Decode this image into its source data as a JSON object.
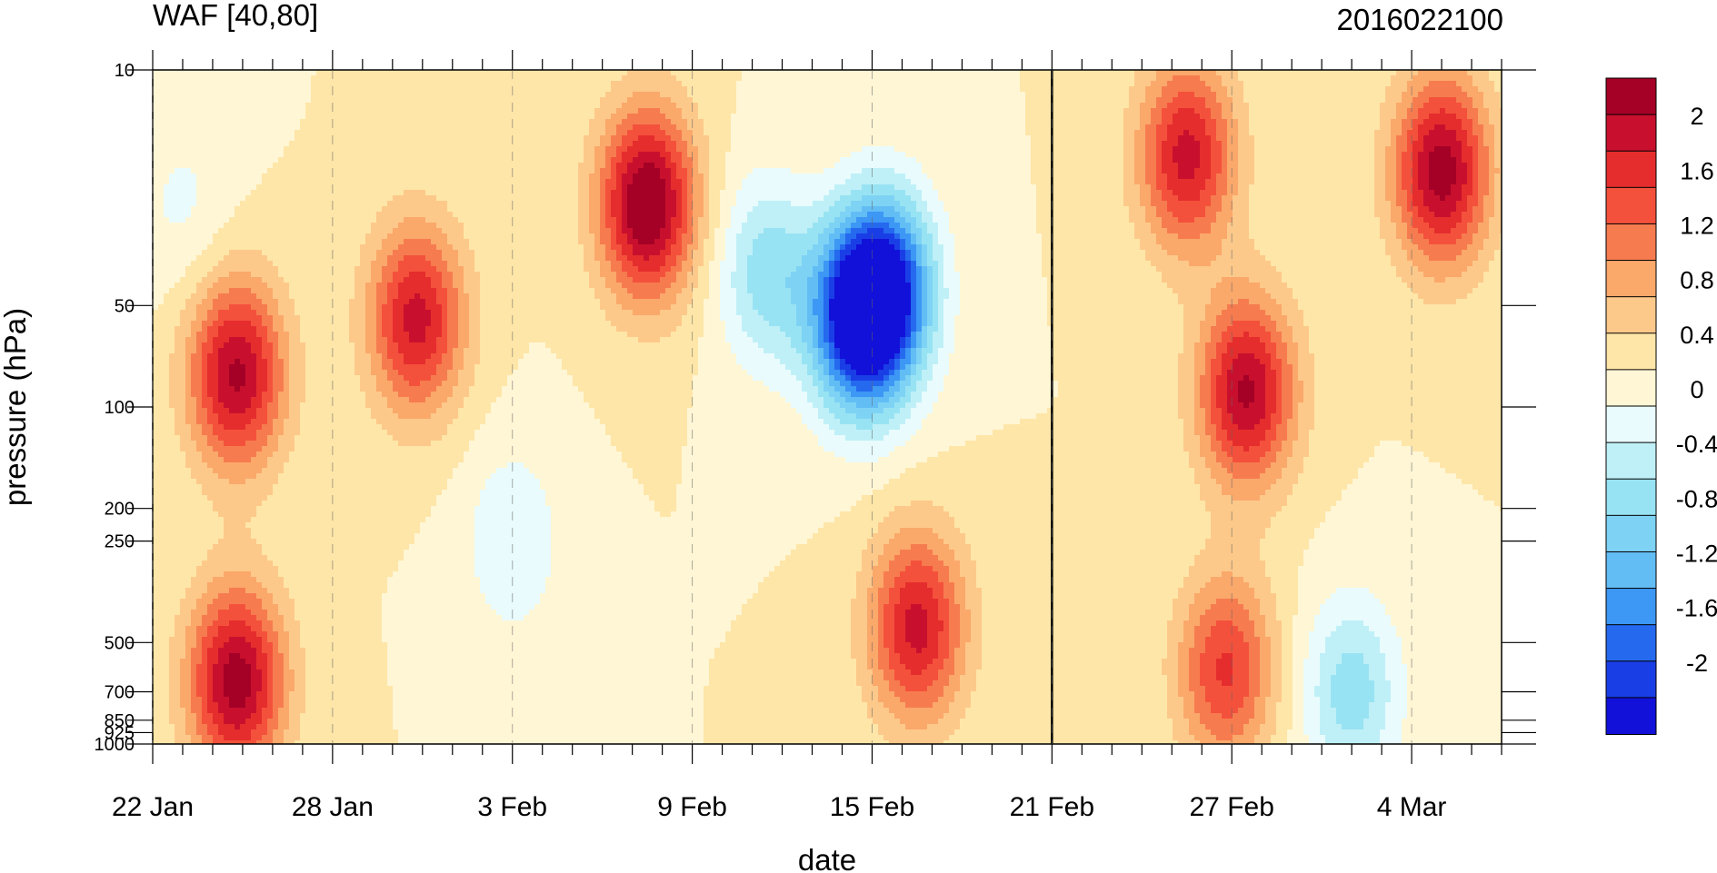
{
  "chart_data": {
    "type": "heatmap",
    "title_left": "WAF [40,80]",
    "title_right": "2016022100",
    "xlabel": "date",
    "ylabel": "pressure (hPa)",
    "x_ticks": [
      {
        "day": 0,
        "label": "22 Jan"
      },
      {
        "day": 6,
        "label": "28 Jan"
      },
      {
        "day": 12,
        "label": "3 Feb"
      },
      {
        "day": 18,
        "label": "9 Feb"
      },
      {
        "day": 24,
        "label": "15 Feb"
      },
      {
        "day": 30,
        "label": "21 Feb"
      },
      {
        "day": 36,
        "label": "27 Feb"
      },
      {
        "day": 42,
        "label": "4 Mar"
      }
    ],
    "y_ticks": [
      10,
      50,
      100,
      200,
      250,
      500,
      700,
      850,
      925,
      1000
    ],
    "x_range_days": [
      0,
      45
    ],
    "y_range_hPa": [
      10,
      1000
    ],
    "y_scale": "log",
    "reference_line_day": 30,
    "colorbar": {
      "labels": [
        "2",
        "1.6",
        "1.2",
        "0.8",
        "0.4",
        "0",
        "-0.4",
        "-0.8",
        "-1.2",
        "-1.6",
        "-2"
      ],
      "colors": [
        "#a50026",
        "#c8102e",
        "#e52d2d",
        "#f4513c",
        "#f67c4f",
        "#fba86b",
        "#fdc98a",
        "#fee6a8",
        "#fff6d5",
        "#e9fbfd",
        "#bff0f7",
        "#98e3f3",
        "#7ed3f5",
        "#62bdf5",
        "#3d97f4",
        "#2569ef",
        "#1a3ee6",
        "#1111d9"
      ]
    },
    "features": [
      {
        "day": 2.8,
        "p": 80,
        "value": 1.8
      },
      {
        "day": 2.8,
        "p": 650,
        "value": 1.9
      },
      {
        "day": 8.8,
        "p": 55,
        "value": 1.6
      },
      {
        "day": 16.5,
        "p": 25,
        "value": 2.1
      },
      {
        "day": 24.5,
        "p": 45,
        "value": -2.0
      },
      {
        "day": 23.5,
        "p": 55,
        "value": -2.2
      },
      {
        "day": 25.5,
        "p": 450,
        "value": 1.6
      },
      {
        "day": 36.5,
        "p": 90,
        "value": 1.8
      },
      {
        "day": 35.8,
        "p": 600,
        "value": 1.3
      },
      {
        "day": 43.0,
        "p": 20,
        "value": 1.9
      },
      {
        "day": 34.5,
        "p": 18,
        "value": 1.6
      },
      {
        "day": 20.5,
        "p": 40,
        "value": -0.9
      },
      {
        "day": 40.0,
        "p": 700,
        "value": -0.9
      },
      {
        "day": 12.0,
        "p": 250,
        "value": -0.5
      },
      {
        "day": 1.0,
        "p": 25,
        "value": -0.3
      }
    ]
  }
}
